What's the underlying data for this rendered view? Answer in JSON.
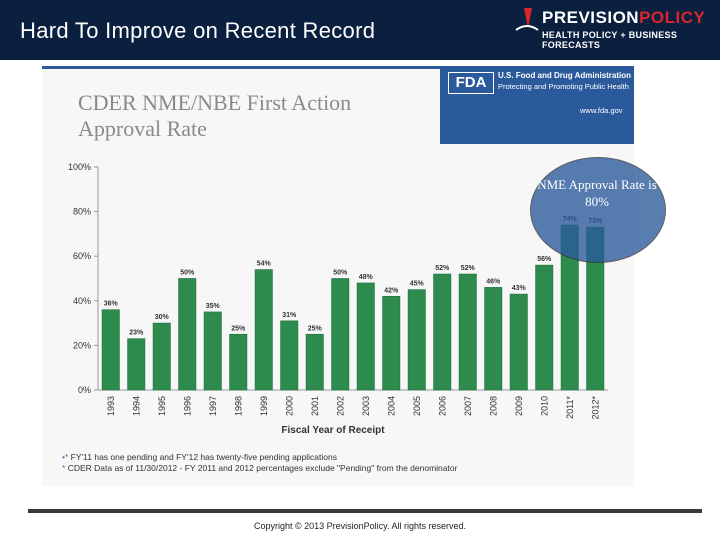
{
  "header": {
    "title": "Hard To Improve on Recent Record",
    "logo_name_part1": "PREVISION",
    "logo_name_part2": "POLICY",
    "logo_tagline": "HEALTH POLICY + BUSINESS FORECASTS"
  },
  "fda": {
    "letters": "FDA",
    "agency": "U.S. Food and Drug Administration",
    "motto": "Protecting and Promoting Public Health",
    "url": "www.fda.gov"
  },
  "callout": {
    "text": "NME Approval Rate is 80%"
  },
  "chart_data": {
    "type": "bar",
    "title": "CDER NME/NBE First Action Approval Rate",
    "xlabel": "Fiscal Year of Receipt",
    "ylabel": "",
    "ylim": [
      0,
      100
    ],
    "yticks": [
      "0%",
      "20%",
      "40%",
      "60%",
      "80%",
      "100%"
    ],
    "ytick_values": [
      0,
      20,
      40,
      60,
      80,
      100
    ],
    "categories": [
      "1993",
      "1994",
      "1995",
      "1996",
      "1997",
      "1998",
      "1999",
      "2000",
      "2001",
      "2002",
      "2003",
      "2004",
      "2005",
      "2006",
      "2007",
      "2008",
      "2009",
      "2010",
      "2011*",
      "2012*"
    ],
    "values": [
      36,
      23,
      30,
      50,
      35,
      25,
      54,
      31,
      25,
      50,
      48,
      42,
      45,
      52,
      52,
      46,
      43,
      56,
      74,
      73
    ],
    "value_labels": [
      "36%",
      "23%",
      "30%",
      "50%",
      "35%",
      "25%",
      "54%",
      "31%",
      "25%",
      "50%",
      "48%",
      "42%",
      "45%",
      "52%",
      "52%",
      "46%",
      "43%",
      "56%",
      "74%",
      "73%"
    ],
    "grid": false,
    "bar_color": "#2e8b4e"
  },
  "notes": [
    "FY'11 has one pending and FY'12 has twenty-five pending applications",
    "CDER Data as of 11/30/2012 - FY 2011 and 2012 percentages exclude \"Pending\" from the denominator"
  ],
  "note_markers": [
    "•*",
    "*"
  ],
  "footer": {
    "copyright": "Copyright © 2013 PrevisionPolicy. All rights reserved."
  }
}
